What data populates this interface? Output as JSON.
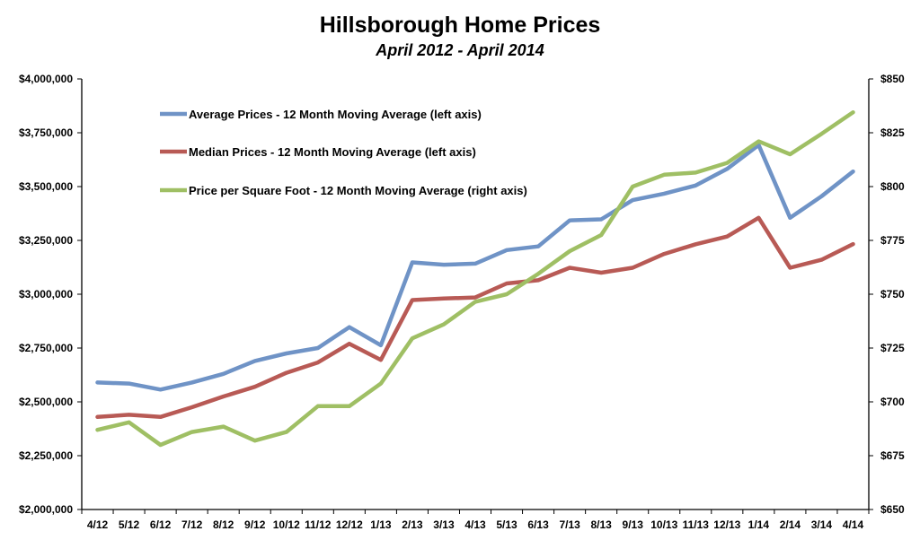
{
  "chart_data": {
    "type": "line",
    "title": "Hillsborough Home Prices",
    "subtitle": "April 2012 - April 2014",
    "categories": [
      "4/12",
      "5/12",
      "6/12",
      "7/12",
      "8/12",
      "9/12",
      "10/12",
      "11/12",
      "12/12",
      "1/13",
      "2/13",
      "3/13",
      "4/13",
      "5/13",
      "6/13",
      "7/13",
      "8/13",
      "9/13",
      "10/13",
      "11/13",
      "12/13",
      "1/14",
      "2/14",
      "3/14",
      "4/14"
    ],
    "y_left": {
      "min": 2000000,
      "max": 4000000,
      "ticks": [
        2000000,
        2250000,
        2500000,
        2750000,
        3000000,
        3250000,
        3500000,
        3750000,
        4000000
      ],
      "tick_labels": [
        "$2,000,000",
        "$2,250,000",
        "$2,500,000",
        "$2,750,000",
        "$3,000,000",
        "$3,250,000",
        "$3,500,000",
        "$3,750,000",
        "$4,000,000"
      ]
    },
    "y_right": {
      "min": 650,
      "max": 850,
      "ticks": [
        650,
        675,
        700,
        725,
        750,
        775,
        800,
        825,
        850
      ],
      "tick_labels": [
        "$650",
        "$675",
        "$700",
        "$725",
        "$750",
        "$775",
        "$800",
        "$825",
        "$850"
      ]
    },
    "grid": false,
    "legend_position": "top-left",
    "series": [
      {
        "name": "Average Prices - 12 Month Moving Average (left axis)",
        "axis": "left",
        "color": "#6f93c6",
        "values": [
          2590000,
          2585000,
          2557000,
          2590000,
          2630000,
          2690000,
          2725000,
          2750000,
          2847000,
          2763000,
          3148000,
          3137000,
          3142000,
          3205000,
          3222000,
          3343000,
          3348000,
          3437000,
          3467000,
          3505000,
          3582000,
          3693000,
          3355000,
          3455000,
          3570000
        ]
      },
      {
        "name": "Median Prices - 12 Month Moving Average (left axis)",
        "axis": "left",
        "color": "#b85a55",
        "values": [
          2430000,
          2440000,
          2430000,
          2475000,
          2525000,
          2570000,
          2635000,
          2683000,
          2770000,
          2695000,
          2973000,
          2980000,
          2985000,
          3050000,
          3065000,
          3123000,
          3100000,
          3123000,
          3187000,
          3232000,
          3268000,
          3355000,
          3123000,
          3160000,
          3233000
        ]
      },
      {
        "name": "Price per Square Foot - 12 Month Moving Average (right axis)",
        "axis": "right",
        "color": "#9fbf64",
        "values": [
          687,
          690.5,
          680,
          686,
          688.5,
          682,
          686,
          698,
          698,
          708.5,
          729.5,
          736,
          746.5,
          750,
          759.5,
          770,
          777.5,
          800,
          805.5,
          806.5,
          811,
          821,
          815,
          824.5,
          834.5
        ]
      }
    ]
  }
}
